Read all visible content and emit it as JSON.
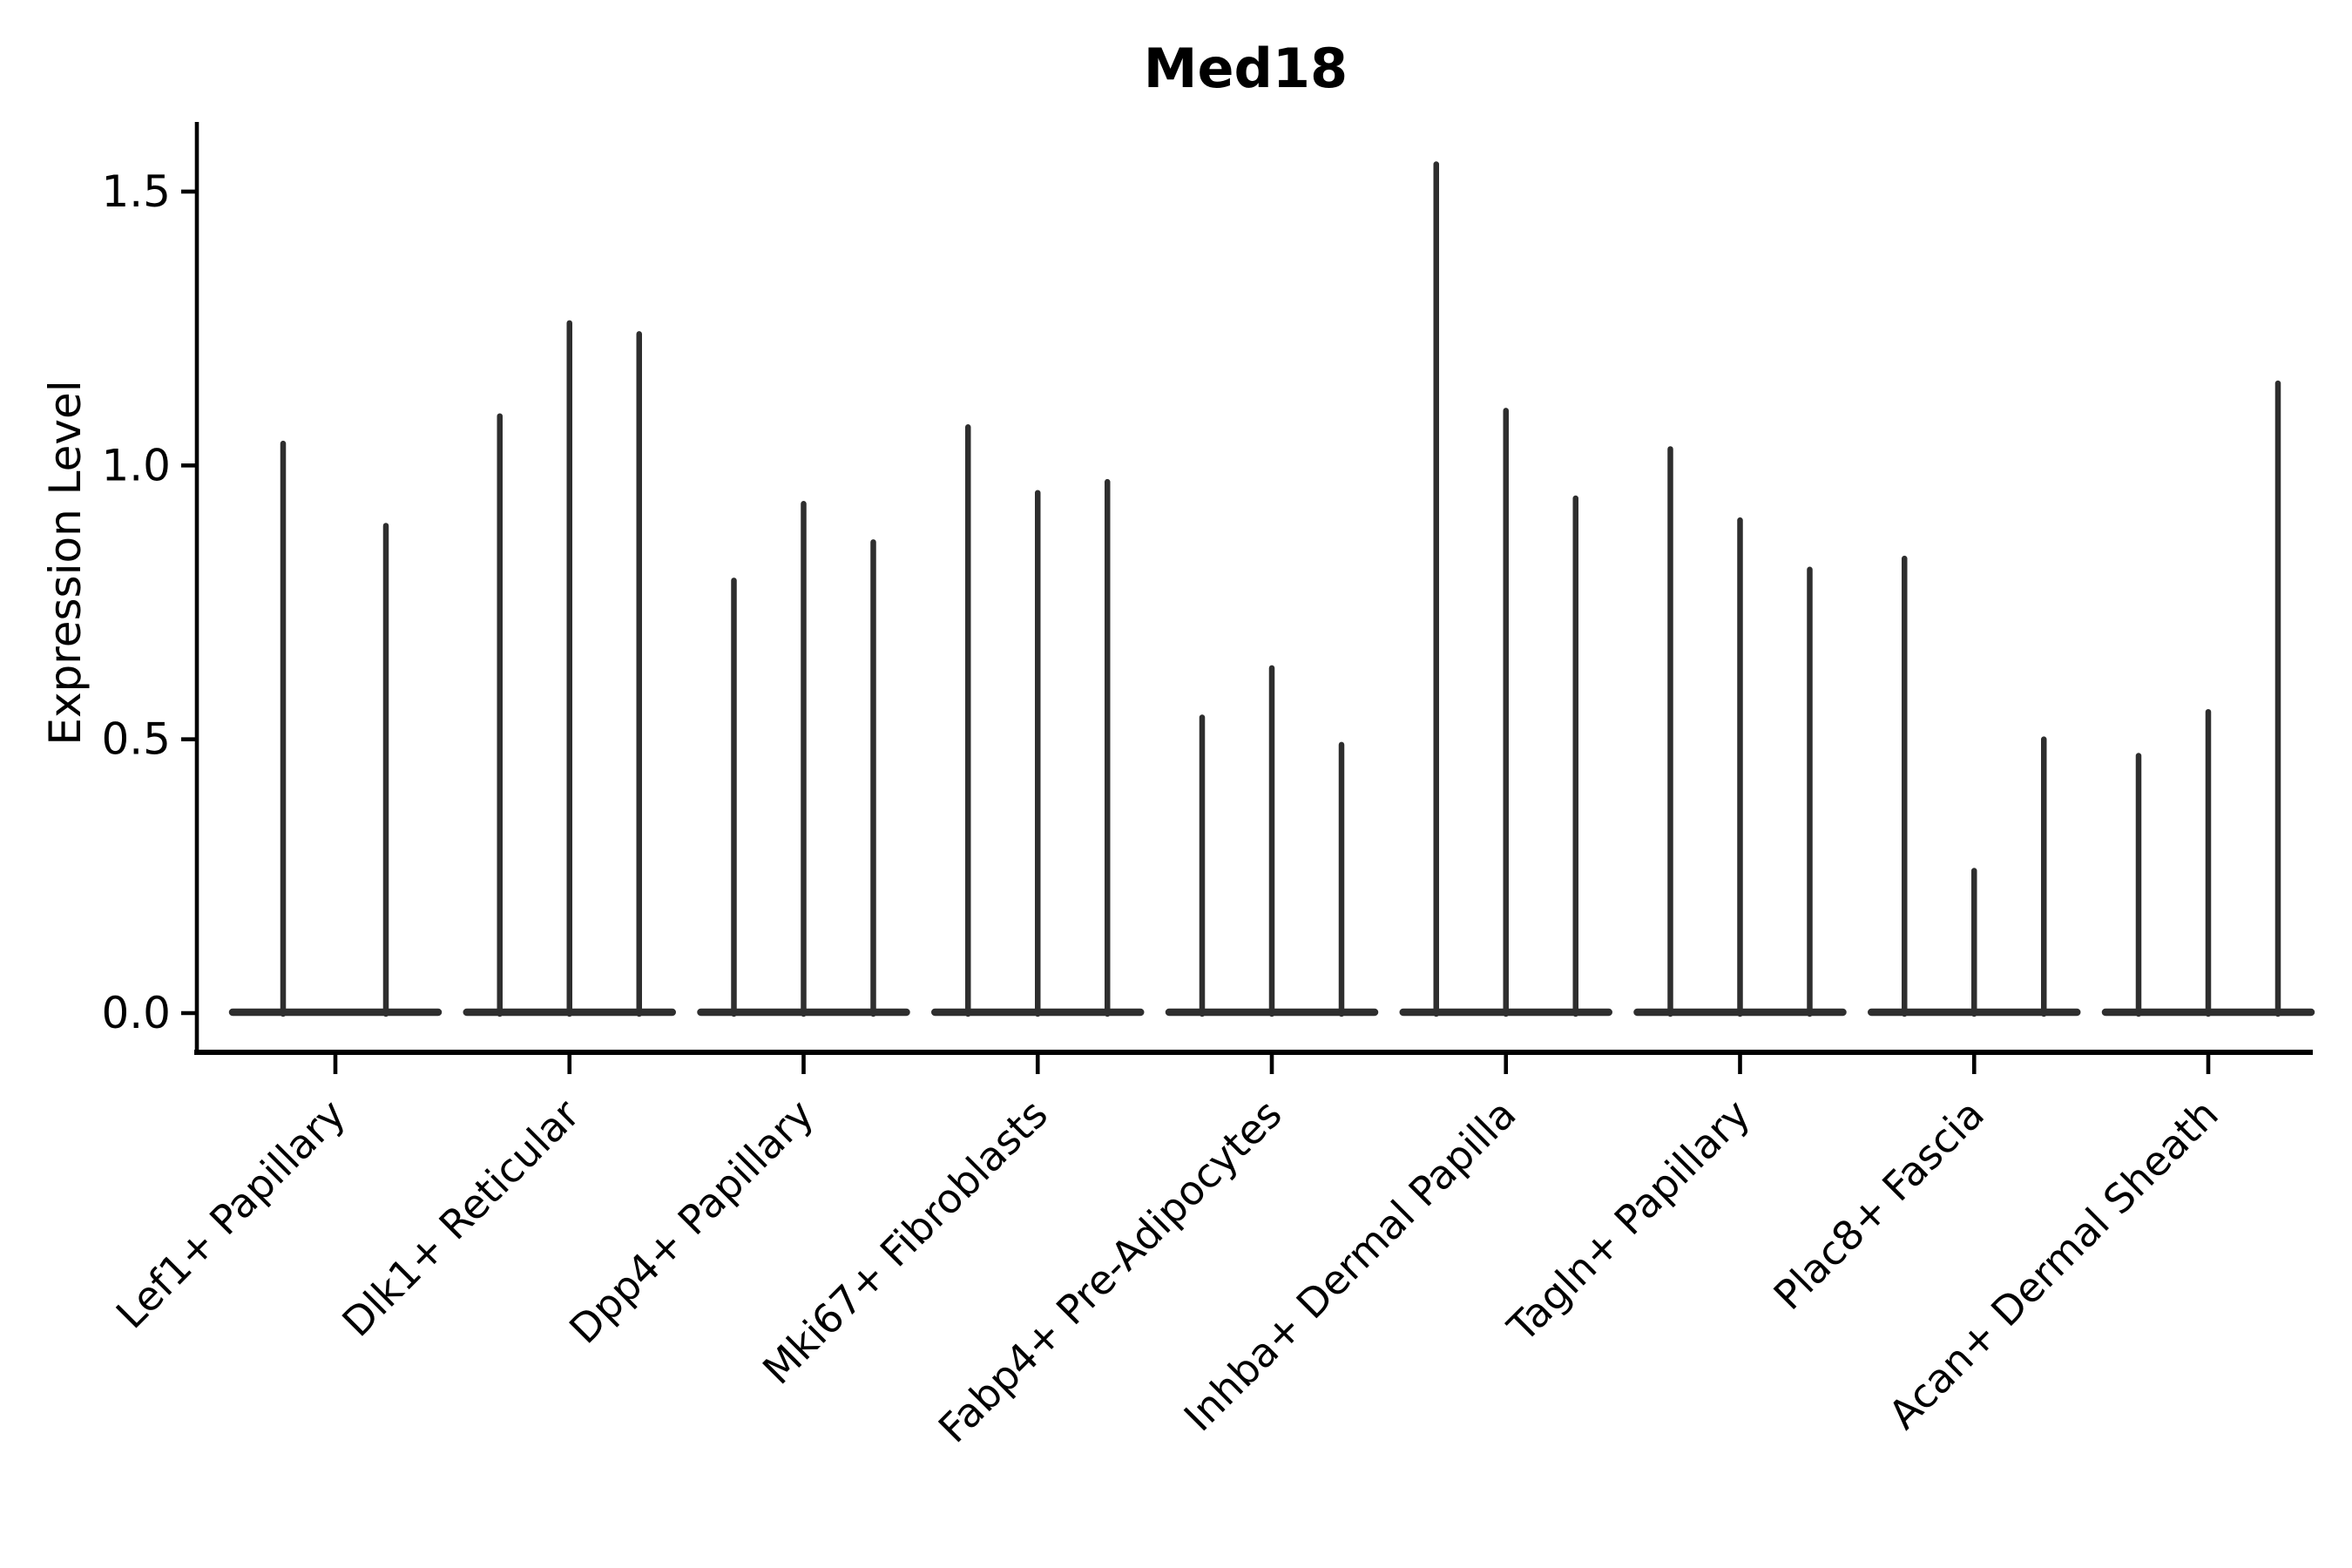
{
  "chart_data": {
    "type": "violin",
    "title": "Med18",
    "ylabel": "Expression Level",
    "xlabel": "",
    "ylim": [
      -0.07,
      1.7
    ],
    "grid": false,
    "legend": false,
    "violin_color": "#2e2e2e",
    "yticks": [
      {
        "label": "0.0",
        "value": 0.0
      },
      {
        "label": "0.5",
        "value": 0.5
      },
      {
        "label": "1.0",
        "value": 1.0
      },
      {
        "label": "1.5",
        "value": 1.5
      }
    ],
    "categories": [
      "Lef1+ Papillary",
      "Dlk1+ Reticular",
      "Dpp4+ Papillary",
      "Mki67+ Fibroblasts",
      "Fabp4+ Pre-Adipocytes",
      "Inhba+ Dermal Papilla",
      "Tagln+ Papillary",
      "Plac8+ Fascia",
      "Acan+ Dermal Sheath"
    ],
    "groups": [
      {
        "category": "Lef1+ Papillary",
        "violin_max": [
          1.04,
          0.89
        ]
      },
      {
        "category": "Dlk1+ Reticular",
        "violin_max": [
          1.09,
          1.26,
          1.24
        ]
      },
      {
        "category": "Dpp4+ Papillary",
        "violin_max": [
          0.79,
          0.93,
          0.86
        ]
      },
      {
        "category": "Mki67+ Fibroblasts",
        "violin_max": [
          1.07,
          0.95,
          0.97
        ]
      },
      {
        "category": "Fabp4+ Pre-Adipocytes",
        "violin_max": [
          0.54,
          0.63,
          0.49
        ]
      },
      {
        "category": "Inhba+ Dermal Papilla",
        "violin_max": [
          1.55,
          1.1,
          0.94
        ]
      },
      {
        "category": "Tagln+ Papillary",
        "violin_max": [
          1.03,
          0.9,
          0.81
        ]
      },
      {
        "category": "Plac8+ Fascia",
        "violin_max": [
          0.83,
          0.26,
          0.5
        ]
      },
      {
        "category": "Acan+ Dermal Sheath",
        "violin_max": [
          0.47,
          0.55,
          1.15
        ]
      }
    ]
  }
}
